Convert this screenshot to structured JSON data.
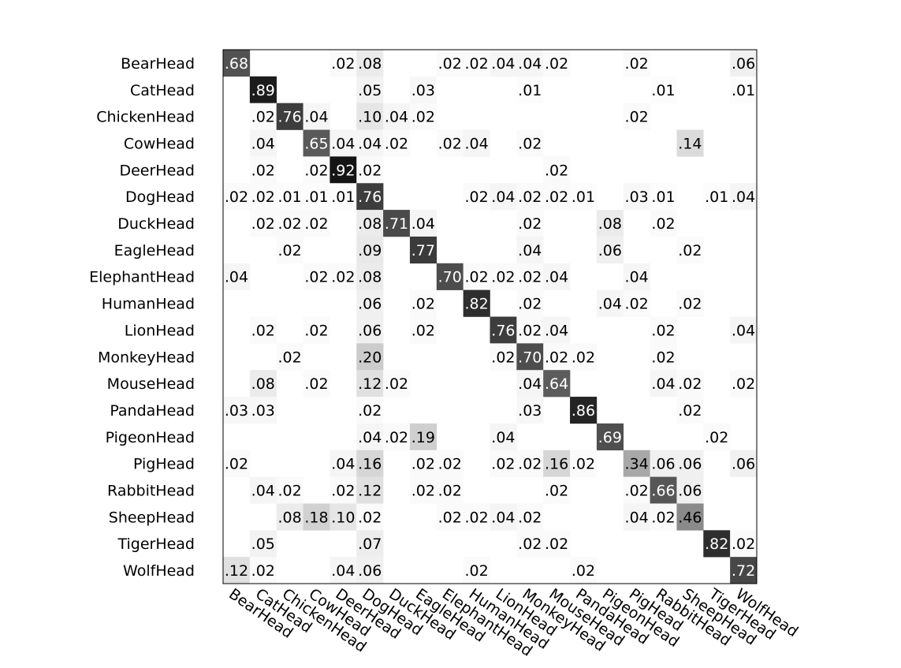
{
  "chart_data": {
    "type": "heatmap",
    "title": "",
    "xlabel": "",
    "ylabel": "",
    "rows": [
      "BearHead",
      "CatHead",
      "ChickenHead",
      "CowHead",
      "DeerHead",
      "DogHead",
      "DuckHead",
      "EagleHead",
      "ElephantHead",
      "HumanHead",
      "LionHead",
      "MonkeyHead",
      "MouseHead",
      "PandaHead",
      "PigeonHead",
      "PigHead",
      "RabbitHead",
      "SheepHead",
      "TigerHead",
      "WolfHead"
    ],
    "columns": [
      "BearHead",
      "CatHead",
      "ChickenHead",
      "CowHead",
      "DeerHead",
      "DogHead",
      "DuckHead",
      "EagleHead",
      "ElephantHead",
      "HumanHead",
      "LionHead",
      "MonkeyHead",
      "MouseHead",
      "PandaHead",
      "PigeonHead",
      "PigHead",
      "RabbitHead",
      "SheepHead",
      "TigerHead",
      "WolfHead"
    ],
    "values": [
      [
        0.68,
        null,
        null,
        null,
        0.02,
        0.08,
        null,
        null,
        0.02,
        0.02,
        0.04,
        0.04,
        0.02,
        null,
        null,
        0.02,
        null,
        null,
        null,
        0.06
      ],
      [
        null,
        0.89,
        null,
        null,
        null,
        0.05,
        null,
        0.03,
        null,
        null,
        null,
        0.01,
        null,
        null,
        null,
        null,
        0.01,
        null,
        null,
        0.01
      ],
      [
        null,
        0.02,
        0.76,
        0.04,
        null,
        0.1,
        0.04,
        0.02,
        null,
        null,
        null,
        null,
        null,
        null,
        null,
        0.02,
        null,
        null,
        null,
        null
      ],
      [
        null,
        0.04,
        null,
        0.65,
        0.04,
        0.04,
        0.02,
        null,
        0.02,
        0.04,
        null,
        0.02,
        null,
        null,
        null,
        null,
        null,
        0.14,
        null,
        null
      ],
      [
        null,
        0.02,
        null,
        0.02,
        0.92,
        0.02,
        null,
        null,
        null,
        null,
        null,
        null,
        0.02,
        null,
        null,
        null,
        null,
        null,
        null,
        null
      ],
      [
        0.02,
        0.02,
        0.01,
        0.01,
        0.01,
        0.76,
        null,
        null,
        null,
        0.02,
        0.04,
        0.02,
        0.02,
        0.01,
        null,
        0.03,
        0.01,
        null,
        0.01,
        0.04
      ],
      [
        null,
        0.02,
        0.02,
        0.02,
        null,
        0.08,
        0.71,
        0.04,
        null,
        null,
        null,
        0.02,
        null,
        null,
        0.08,
        null,
        0.02,
        null,
        null,
        null
      ],
      [
        null,
        null,
        0.02,
        null,
        null,
        0.09,
        null,
        0.77,
        null,
        null,
        null,
        0.04,
        null,
        null,
        0.06,
        null,
        null,
        0.02,
        null,
        null
      ],
      [
        0.04,
        null,
        null,
        0.02,
        0.02,
        0.08,
        null,
        null,
        0.7,
        0.02,
        0.02,
        0.02,
        0.04,
        null,
        null,
        0.04,
        null,
        null,
        null,
        null
      ],
      [
        null,
        null,
        null,
        null,
        null,
        0.06,
        null,
        0.02,
        null,
        0.82,
        null,
        0.02,
        null,
        null,
        0.04,
        0.02,
        null,
        0.02,
        null,
        null
      ],
      [
        null,
        0.02,
        null,
        0.02,
        null,
        0.06,
        null,
        0.02,
        null,
        null,
        0.76,
        0.02,
        0.04,
        null,
        null,
        null,
        0.02,
        null,
        null,
        0.04
      ],
      [
        null,
        null,
        0.02,
        null,
        null,
        0.2,
        null,
        null,
        null,
        null,
        0.02,
        0.7,
        0.02,
        0.02,
        null,
        null,
        0.02,
        null,
        null,
        null
      ],
      [
        null,
        0.08,
        null,
        0.02,
        null,
        0.12,
        0.02,
        null,
        null,
        null,
        null,
        0.04,
        0.64,
        null,
        null,
        null,
        0.04,
        0.02,
        null,
        0.02
      ],
      [
        0.03,
        0.03,
        null,
        null,
        null,
        0.02,
        null,
        null,
        null,
        null,
        null,
        0.03,
        null,
        0.86,
        null,
        null,
        null,
        0.02,
        null,
        null
      ],
      [
        null,
        null,
        null,
        null,
        null,
        0.04,
        0.02,
        0.19,
        null,
        null,
        0.04,
        null,
        null,
        null,
        0.69,
        null,
        null,
        null,
        0.02,
        null
      ],
      [
        0.02,
        null,
        null,
        null,
        0.04,
        0.16,
        null,
        0.02,
        0.02,
        null,
        0.02,
        0.02,
        0.16,
        0.02,
        null,
        0.34,
        0.06,
        0.06,
        null,
        0.06
      ],
      [
        null,
        0.04,
        0.02,
        null,
        0.02,
        0.12,
        null,
        0.02,
        0.02,
        null,
        null,
        null,
        0.02,
        null,
        null,
        0.02,
        0.66,
        0.06,
        null,
        null
      ],
      [
        null,
        null,
        0.08,
        0.18,
        0.1,
        0.02,
        null,
        null,
        0.02,
        0.02,
        0.04,
        0.02,
        null,
        null,
        null,
        0.04,
        0.02,
        0.46,
        null,
        null
      ],
      [
        null,
        0.05,
        null,
        null,
        null,
        0.07,
        null,
        null,
        null,
        null,
        null,
        0.02,
        0.02,
        null,
        null,
        null,
        null,
        null,
        0.82,
        0.02
      ],
      [
        0.12,
        0.02,
        null,
        null,
        0.04,
        0.06,
        null,
        null,
        null,
        0.02,
        null,
        null,
        null,
        0.02,
        null,
        null,
        null,
        null,
        null,
        0.72
      ]
    ],
    "value_format": "leading-dot two decimals, blanks for empty",
    "colormap": "grayscale (white = 0, black = 1)",
    "grid": false,
    "legend": "none"
  }
}
